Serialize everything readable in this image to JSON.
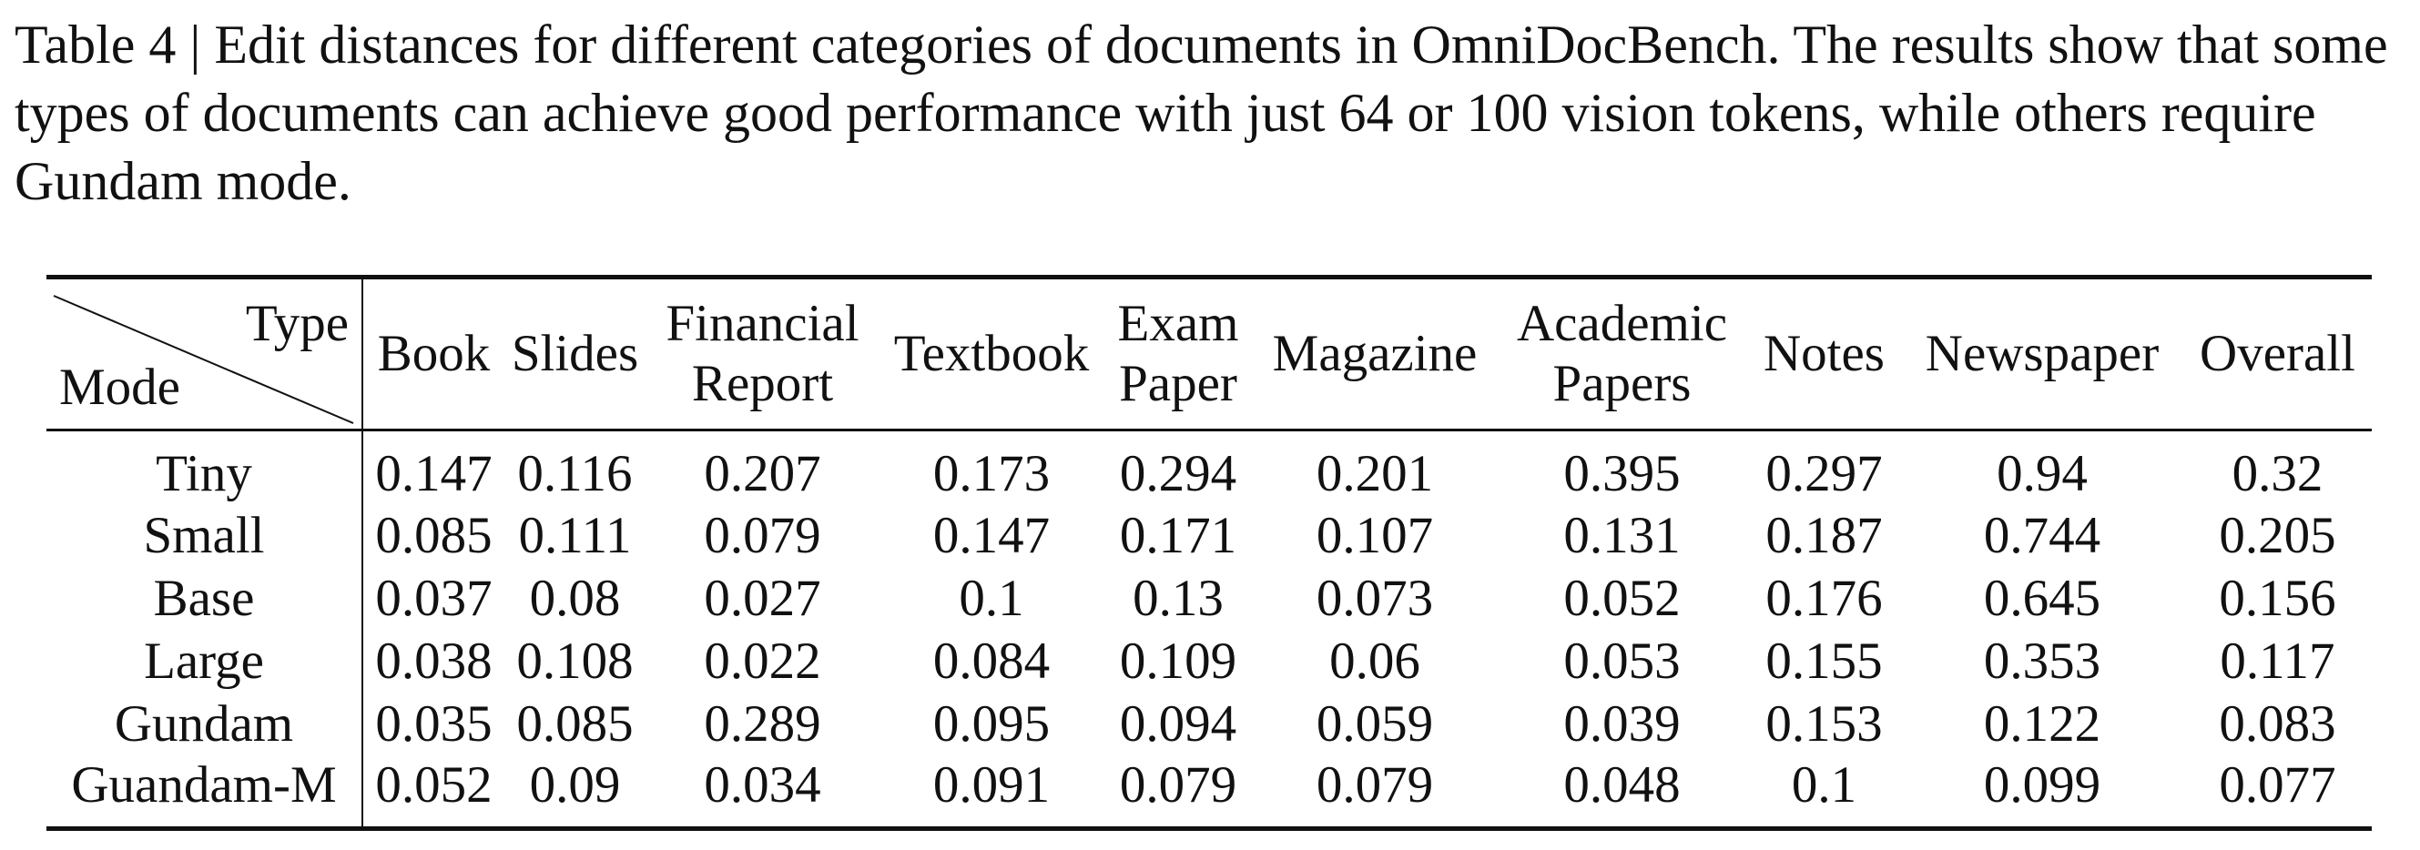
{
  "caption": "Table 4 | Edit distances for different categories of documents in OmniDocBench. The results show that some types of documents can achieve good performance with just 64 or 100 vision tokens, while others require Gundam mode.",
  "table": {
    "corner": {
      "column_label": "Type",
      "row_label": "Mode"
    },
    "columns": [
      [
        "Book"
      ],
      [
        "Slides"
      ],
      [
        "Financial",
        "Report"
      ],
      [
        "Textbook"
      ],
      [
        "Exam",
        "Paper"
      ],
      [
        "Magazine"
      ],
      [
        "Academic",
        "Papers"
      ],
      [
        "Notes"
      ],
      [
        "Newspaper"
      ],
      [
        "Overall"
      ]
    ],
    "rows": [
      {
        "mode": "Tiny",
        "values": [
          "0.147",
          "0.116",
          "0.207",
          "0.173",
          "0.294",
          "0.201",
          "0.395",
          "0.297",
          "0.94",
          "0.32"
        ]
      },
      {
        "mode": "Small",
        "values": [
          "0.085",
          "0.111",
          "0.079",
          "0.147",
          "0.171",
          "0.107",
          "0.131",
          "0.187",
          "0.744",
          "0.205"
        ]
      },
      {
        "mode": "Base",
        "values": [
          "0.037",
          "0.08",
          "0.027",
          "0.1",
          "0.13",
          "0.073",
          "0.052",
          "0.176",
          "0.645",
          "0.156"
        ]
      },
      {
        "mode": "Large",
        "values": [
          "0.038",
          "0.108",
          "0.022",
          "0.084",
          "0.109",
          "0.06",
          "0.053",
          "0.155",
          "0.353",
          "0.117"
        ]
      },
      {
        "mode": "Gundam",
        "values": [
          "0.035",
          "0.085",
          "0.289",
          "0.095",
          "0.094",
          "0.059",
          "0.039",
          "0.153",
          "0.122",
          "0.083"
        ]
      },
      {
        "mode": "Guandam-M",
        "values": [
          "0.052",
          "0.09",
          "0.034",
          "0.091",
          "0.079",
          "0.079",
          "0.048",
          "0.1",
          "0.099",
          "0.077"
        ]
      }
    ]
  }
}
